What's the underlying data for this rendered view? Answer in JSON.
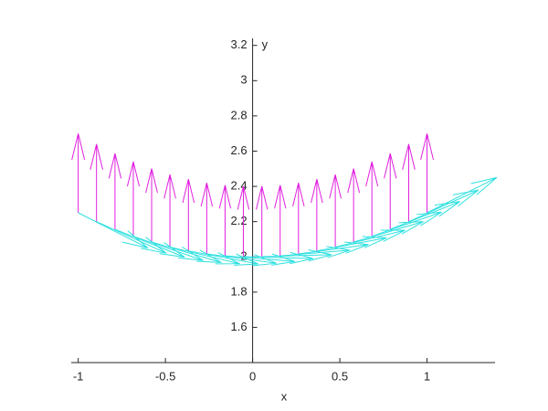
{
  "chart_data": {
    "type": "quiver",
    "xlabel": "x",
    "ylabel": "y",
    "x": [
      -1,
      -0.895,
      -0.789,
      -0.684,
      -0.579,
      -0.474,
      -0.368,
      -0.263,
      -0.158,
      -0.053,
      0.053,
      0.158,
      0.263,
      0.368,
      0.474,
      0.579,
      0.684,
      0.789,
      0.895,
      1
    ],
    "y": [
      2.25,
      2.2,
      2.156,
      2.117,
      2.084,
      2.056,
      2.034,
      2.017,
      2.006,
      2.001,
      2.001,
      2.006,
      2.017,
      2.034,
      2.056,
      2.084,
      2.117,
      2.156,
      2.2,
      2.25
    ],
    "series": [
      {
        "color": "#e020e0",
        "u": [
          0,
          0,
          0,
          0,
          0,
          0,
          0,
          0,
          0,
          0,
          0,
          0,
          0,
          0,
          0,
          0,
          0,
          0,
          0,
          0
        ],
        "v": [
          0.45,
          0.44,
          0.431,
          0.423,
          0.417,
          0.411,
          0.407,
          0.403,
          0.401,
          0.4,
          0.4,
          0.401,
          0.403,
          0.407,
          0.411,
          0.417,
          0.423,
          0.431,
          0.44,
          0.45
        ]
      },
      {
        "color": "#30e0e0",
        "u": [
          0.4,
          0.4,
          0.4,
          0.4,
          0.4,
          0.4,
          0.4,
          0.4,
          0.4,
          0.4,
          0.4,
          0.4,
          0.4,
          0.4,
          0.4,
          0.4,
          0.4,
          0.4,
          0.4,
          0.4
        ],
        "v": [
          -0.2,
          -0.179,
          -0.158,
          -0.137,
          -0.116,
          -0.095,
          -0.074,
          -0.053,
          -0.032,
          -0.011,
          0.011,
          0.032,
          0.053,
          0.074,
          0.095,
          0.116,
          0.137,
          0.158,
          0.179,
          0.2
        ]
      }
    ],
    "xlim": [
      -1.04,
      1.39
    ],
    "ylim": [
      1.4,
      3.24
    ],
    "xticks": [
      -1,
      -0.5,
      0,
      0.5,
      1
    ],
    "yticks": [
      1.6,
      1.8,
      2,
      2.2,
      2.4,
      2.6,
      2.8,
      3,
      3.2
    ]
  }
}
